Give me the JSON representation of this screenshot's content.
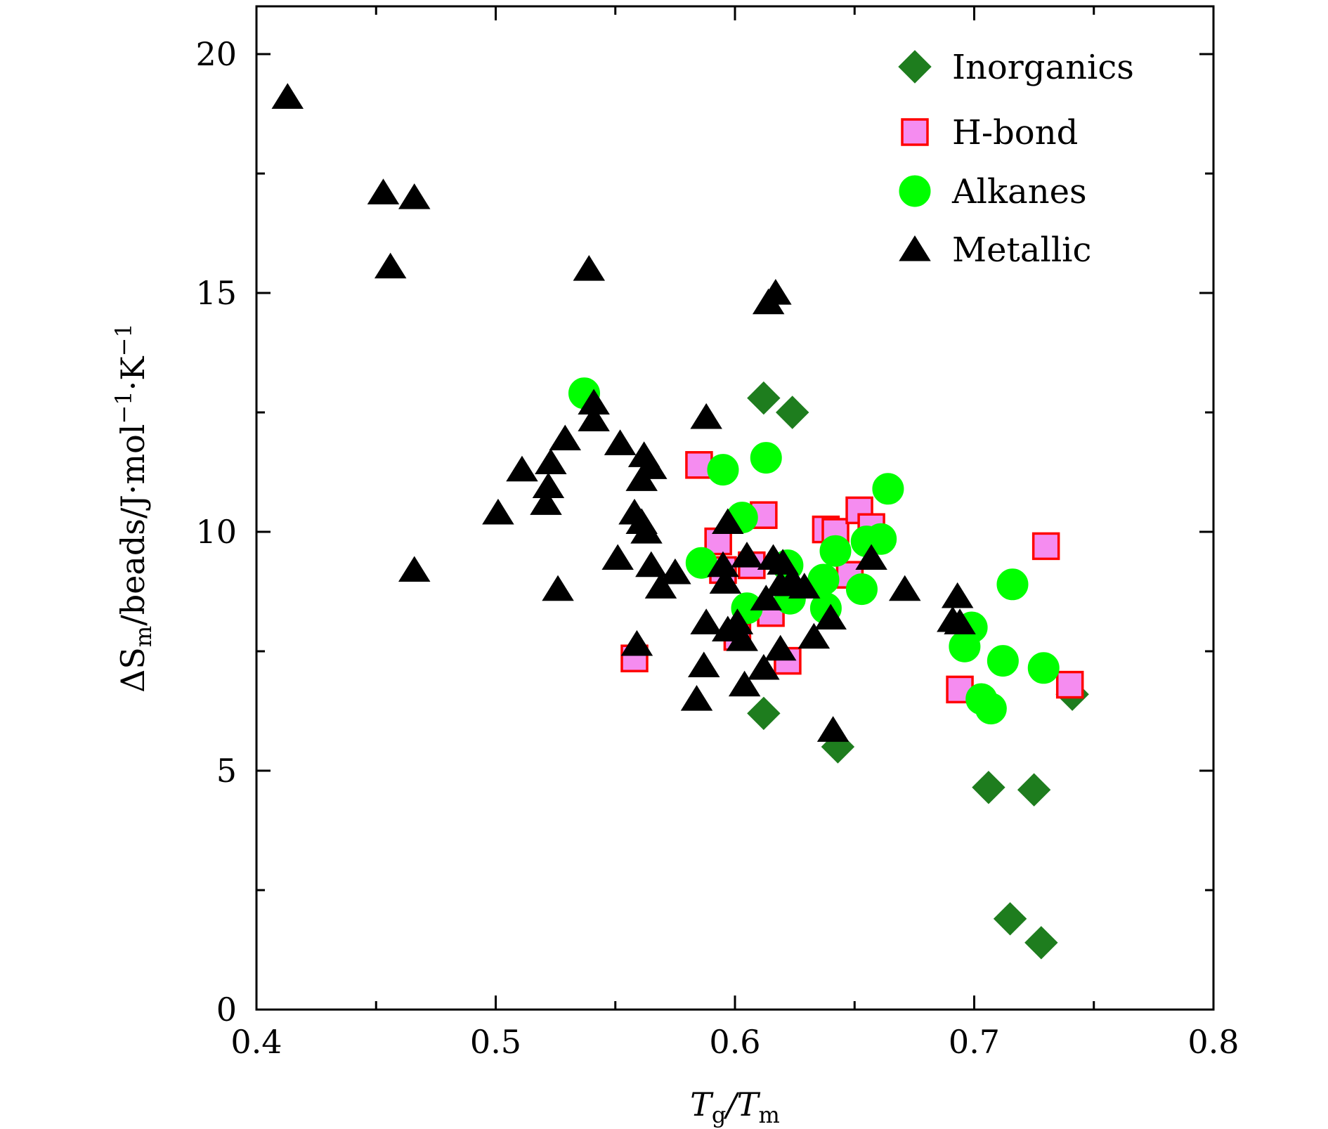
{
  "chart_data": {
    "type": "scatter",
    "x_axis": {
      "label": {
        "main": "T",
        "sub1": "g",
        "sep": "/T",
        "sub2": "m"
      },
      "range": [
        0.4,
        0.8
      ],
      "ticks": [
        0.4,
        0.5,
        0.6,
        0.7,
        0.8
      ],
      "tick_labels": [
        "0.4",
        "0.5",
        "0.6",
        "0.7",
        "0.8"
      ]
    },
    "y_axis": {
      "label": {
        "main": "ΔS",
        "sub": "m",
        "rest1": "/beads/J·mol",
        "sup1": "−1",
        "rest2": "·K",
        "sup2": "−1"
      },
      "range": [
        0,
        21
      ],
      "ticks": [
        0,
        5,
        10,
        15,
        20
      ],
      "tick_labels": [
        "0",
        "5",
        "10",
        "15",
        "20"
      ]
    },
    "grid": false,
    "legend_position": "top-right",
    "series": [
      {
        "name": "Inorganics",
        "marker": "diamond",
        "color": "#1e7d1e",
        "edge": "#1e7d1e",
        "points": [
          [
            0.612,
            12.8
          ],
          [
            0.624,
            12.5
          ],
          [
            0.612,
            6.2
          ],
          [
            0.643,
            5.5
          ],
          [
            0.706,
            4.65
          ],
          [
            0.725,
            4.6
          ],
          [
            0.715,
            1.9
          ],
          [
            0.728,
            1.4
          ],
          [
            0.741,
            6.6
          ]
        ]
      },
      {
        "name": "H-bond",
        "marker": "square",
        "color": "#f58cf0",
        "edge": "#ff0000",
        "points": [
          [
            0.585,
            11.4
          ],
          [
            0.612,
            10.35
          ],
          [
            0.593,
            9.8
          ],
          [
            0.595,
            9.2
          ],
          [
            0.607,
            9.3
          ],
          [
            0.601,
            7.8
          ],
          [
            0.615,
            8.3
          ],
          [
            0.622,
            7.3
          ],
          [
            0.558,
            7.35
          ],
          [
            0.638,
            10.05
          ],
          [
            0.642,
            10.0
          ],
          [
            0.652,
            10.45
          ],
          [
            0.657,
            10.1
          ],
          [
            0.648,
            9.1
          ],
          [
            0.73,
            9.7
          ],
          [
            0.694,
            6.7
          ],
          [
            0.74,
            6.8
          ]
        ]
      },
      {
        "name": "Alkanes",
        "marker": "circle",
        "color": "#00ff00",
        "edge": "#00ff00",
        "points": [
          [
            0.537,
            12.9
          ],
          [
            0.613,
            11.55
          ],
          [
            0.595,
            11.3
          ],
          [
            0.603,
            10.3
          ],
          [
            0.586,
            9.35
          ],
          [
            0.605,
            8.4
          ],
          [
            0.622,
            9.3
          ],
          [
            0.623,
            8.6
          ],
          [
            0.637,
            9.0
          ],
          [
            0.642,
            9.6
          ],
          [
            0.638,
            8.4
          ],
          [
            0.655,
            9.8
          ],
          [
            0.661,
            9.85
          ],
          [
            0.664,
            10.9
          ],
          [
            0.653,
            8.8
          ],
          [
            0.699,
            8.0
          ],
          [
            0.696,
            7.6
          ],
          [
            0.716,
            8.9
          ],
          [
            0.703,
            6.5
          ],
          [
            0.707,
            6.3
          ],
          [
            0.712,
            7.3
          ],
          [
            0.729,
            7.15
          ]
        ]
      },
      {
        "name": "Metallic",
        "marker": "triangle",
        "color": "#000000",
        "edge": "#000000",
        "points": [
          [
            0.413,
            19.1
          ],
          [
            0.453,
            17.1
          ],
          [
            0.466,
            17.0
          ],
          [
            0.456,
            15.55
          ],
          [
            0.466,
            9.2
          ],
          [
            0.539,
            15.5
          ],
          [
            0.614,
            14.8
          ],
          [
            0.617,
            15.0
          ],
          [
            0.588,
            12.4
          ],
          [
            0.541,
            12.7
          ],
          [
            0.541,
            12.35
          ],
          [
            0.529,
            11.95
          ],
          [
            0.552,
            11.85
          ],
          [
            0.562,
            11.6
          ],
          [
            0.565,
            11.35
          ],
          [
            0.511,
            11.3
          ],
          [
            0.523,
            11.45
          ],
          [
            0.522,
            10.95
          ],
          [
            0.521,
            10.6
          ],
          [
            0.561,
            11.1
          ],
          [
            0.501,
            10.4
          ],
          [
            0.558,
            10.4
          ],
          [
            0.561,
            10.2
          ],
          [
            0.563,
            10.0
          ],
          [
            0.597,
            10.2
          ],
          [
            0.551,
            9.45
          ],
          [
            0.565,
            9.3
          ],
          [
            0.575,
            9.15
          ],
          [
            0.569,
            8.85
          ],
          [
            0.526,
            8.8
          ],
          [
            0.595,
            9.3
          ],
          [
            0.596,
            8.95
          ],
          [
            0.605,
            9.5
          ],
          [
            0.616,
            9.45
          ],
          [
            0.62,
            9.35
          ],
          [
            0.624,
            9.0
          ],
          [
            0.629,
            8.85
          ],
          [
            0.619,
            8.9
          ],
          [
            0.613,
            8.6
          ],
          [
            0.657,
            9.45
          ],
          [
            0.671,
            8.8
          ],
          [
            0.693,
            8.65
          ],
          [
            0.691,
            8.15
          ],
          [
            0.694,
            8.1
          ],
          [
            0.588,
            8.1
          ],
          [
            0.597,
            7.95
          ],
          [
            0.601,
            8.1
          ],
          [
            0.603,
            7.75
          ],
          [
            0.619,
            7.55
          ],
          [
            0.633,
            7.8
          ],
          [
            0.64,
            8.2
          ],
          [
            0.559,
            7.65
          ],
          [
            0.587,
            7.2
          ],
          [
            0.612,
            7.15
          ],
          [
            0.604,
            6.8
          ],
          [
            0.584,
            6.5
          ],
          [
            0.641,
            5.85
          ]
        ]
      }
    ]
  }
}
